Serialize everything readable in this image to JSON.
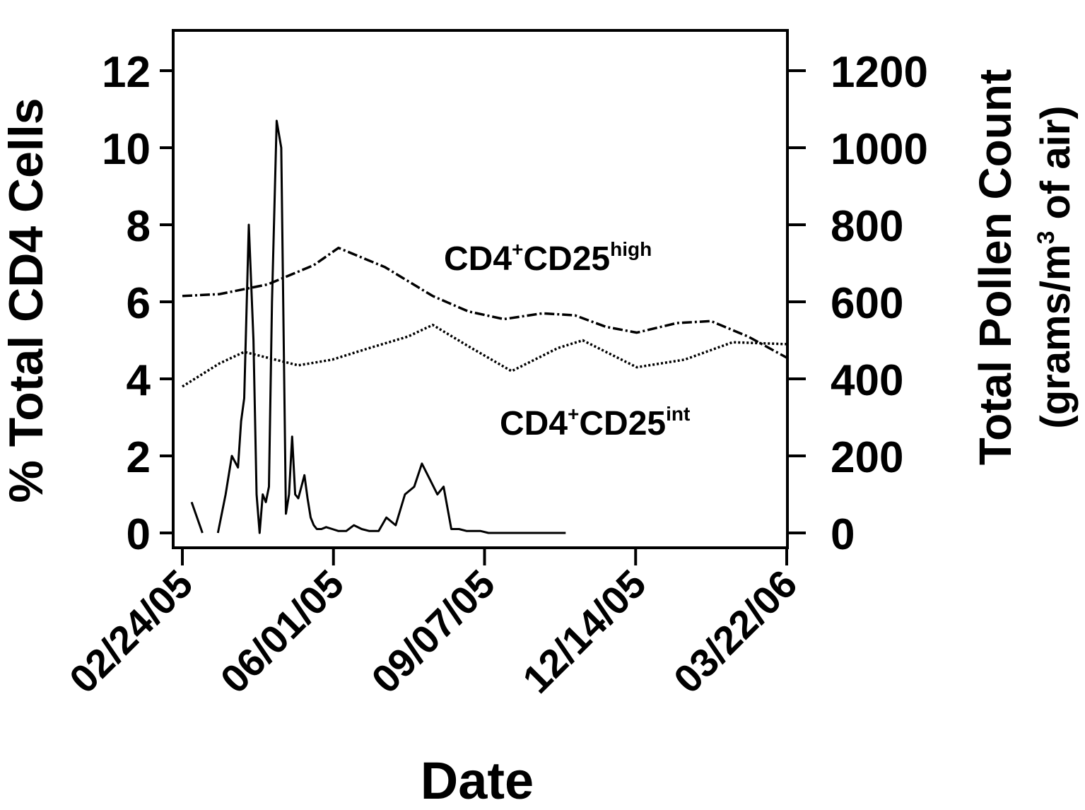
{
  "chart_data": {
    "type": "line",
    "xlabel": "Date",
    "ylabel": "% Total CD4 Cells",
    "y2label_line1": "Total Pollen Count",
    "y2label_line2": "(grams/m",
    "y2label_sup": "3",
    "y2label_line2_end": " of air)",
    "xlim": [
      "2005-02-24",
      "2006-03-22"
    ],
    "ylim": [
      0,
      12
    ],
    "y2lim": [
      0,
      1200
    ],
    "xticks": [
      "02/24/05",
      "06/01/05",
      "09/07/05",
      "12/14/05",
      "03/22/06"
    ],
    "yticks": [
      "0",
      "2",
      "4",
      "6",
      "8",
      "10",
      "12"
    ],
    "y2ticks": [
      "0",
      "200",
      "400",
      "600",
      "800",
      "1000",
      "1200"
    ],
    "grid": false,
    "legend": "none",
    "annotations": [
      {
        "base": "CD4",
        "sup1": "+",
        "mid": "CD25",
        "sup2": "high"
      },
      {
        "base": "CD4",
        "sup1": "+",
        "mid": "CD25",
        "sup2": "int"
      }
    ],
    "series": [
      {
        "axis": "left",
        "style": "dash-dot",
        "x": [
          "2005-02-24",
          "2005-03-20",
          "2005-04-20",
          "2005-05-20",
          "2005-06-05",
          "2005-07-05",
          "2005-08-05",
          "2005-08-28",
          "2005-09-20",
          "2005-10-15",
          "2005-11-05",
          "2005-11-25",
          "2005-12-15",
          "2006-01-10",
          "2006-02-01",
          "2006-02-25",
          "2006-03-22"
        ],
        "y": [
          6.15,
          6.2,
          6.45,
          6.95,
          7.4,
          6.9,
          6.15,
          5.75,
          5.55,
          5.7,
          5.65,
          5.35,
          5.2,
          5.45,
          5.5,
          5.1,
          4.55
        ]
      },
      {
        "axis": "left",
        "style": "dotted",
        "x": [
          "2005-02-24",
          "2005-03-20",
          "2005-04-05",
          "2005-05-10",
          "2005-06-01",
          "2005-06-25",
          "2005-07-20",
          "2005-08-05",
          "2005-08-30",
          "2005-09-25",
          "2005-10-25",
          "2005-11-10",
          "2005-12-15",
          "2006-01-15",
          "2006-02-15",
          "2006-03-22"
        ],
        "y": [
          3.8,
          4.4,
          4.7,
          4.35,
          4.5,
          4.8,
          5.1,
          5.4,
          4.8,
          4.2,
          4.8,
          5.0,
          4.3,
          4.5,
          4.95,
          4.9
        ]
      },
      {
        "axis": "right",
        "style": "solid",
        "segments": [
          {
            "x": [
              "2005-03-02",
              "2005-03-09"
            ],
            "y": [
              80,
              0
            ]
          },
          {
            "x": [
              "2005-03-19",
              "2005-03-24",
              "2005-03-28",
              "2005-04-01",
              "2005-04-03",
              "2005-04-05",
              "2005-04-08",
              "2005-04-11",
              "2005-04-13",
              "2005-04-15",
              "2005-04-17",
              "2005-04-19",
              "2005-04-21",
              "2005-04-23",
              "2005-04-26",
              "2005-04-29",
              "2005-05-02",
              "2005-05-04",
              "2005-05-06",
              "2005-05-08",
              "2005-05-10",
              "2005-05-12",
              "2005-05-14",
              "2005-05-16",
              "2005-05-18",
              "2005-05-20",
              "2005-05-22",
              "2005-05-25",
              "2005-05-28",
              "2005-06-01",
              "2005-06-05",
              "2005-06-10",
              "2005-06-15",
              "2005-06-20",
              "2005-06-25",
              "2005-07-01",
              "2005-07-06",
              "2005-07-12",
              "2005-07-18",
              "2005-07-24",
              "2005-07-29",
              "2005-08-03",
              "2005-08-08",
              "2005-08-12",
              "2005-08-17",
              "2005-08-22",
              "2005-08-27",
              "2005-09-01",
              "2005-09-05",
              "2005-09-10",
              "2005-09-15",
              "2005-09-20",
              "2005-10-01",
              "2005-10-15",
              "2005-10-30"
            ],
            "y": [
              0,
              100,
              200,
              170,
              290,
              350,
              800,
              500,
              100,
              0,
              100,
              80,
              120,
              600,
              1070,
              1000,
              50,
              100,
              250,
              100,
              90,
              120,
              150,
              90,
              40,
              20,
              10,
              10,
              15,
              10,
              5,
              5,
              20,
              10,
              5,
              5,
              40,
              20,
              100,
              120,
              180,
              140,
              100,
              120,
              10,
              10,
              5,
              5,
              5,
              0,
              0,
              0,
              0,
              0,
              0
            ]
          }
        ]
      }
    ]
  }
}
